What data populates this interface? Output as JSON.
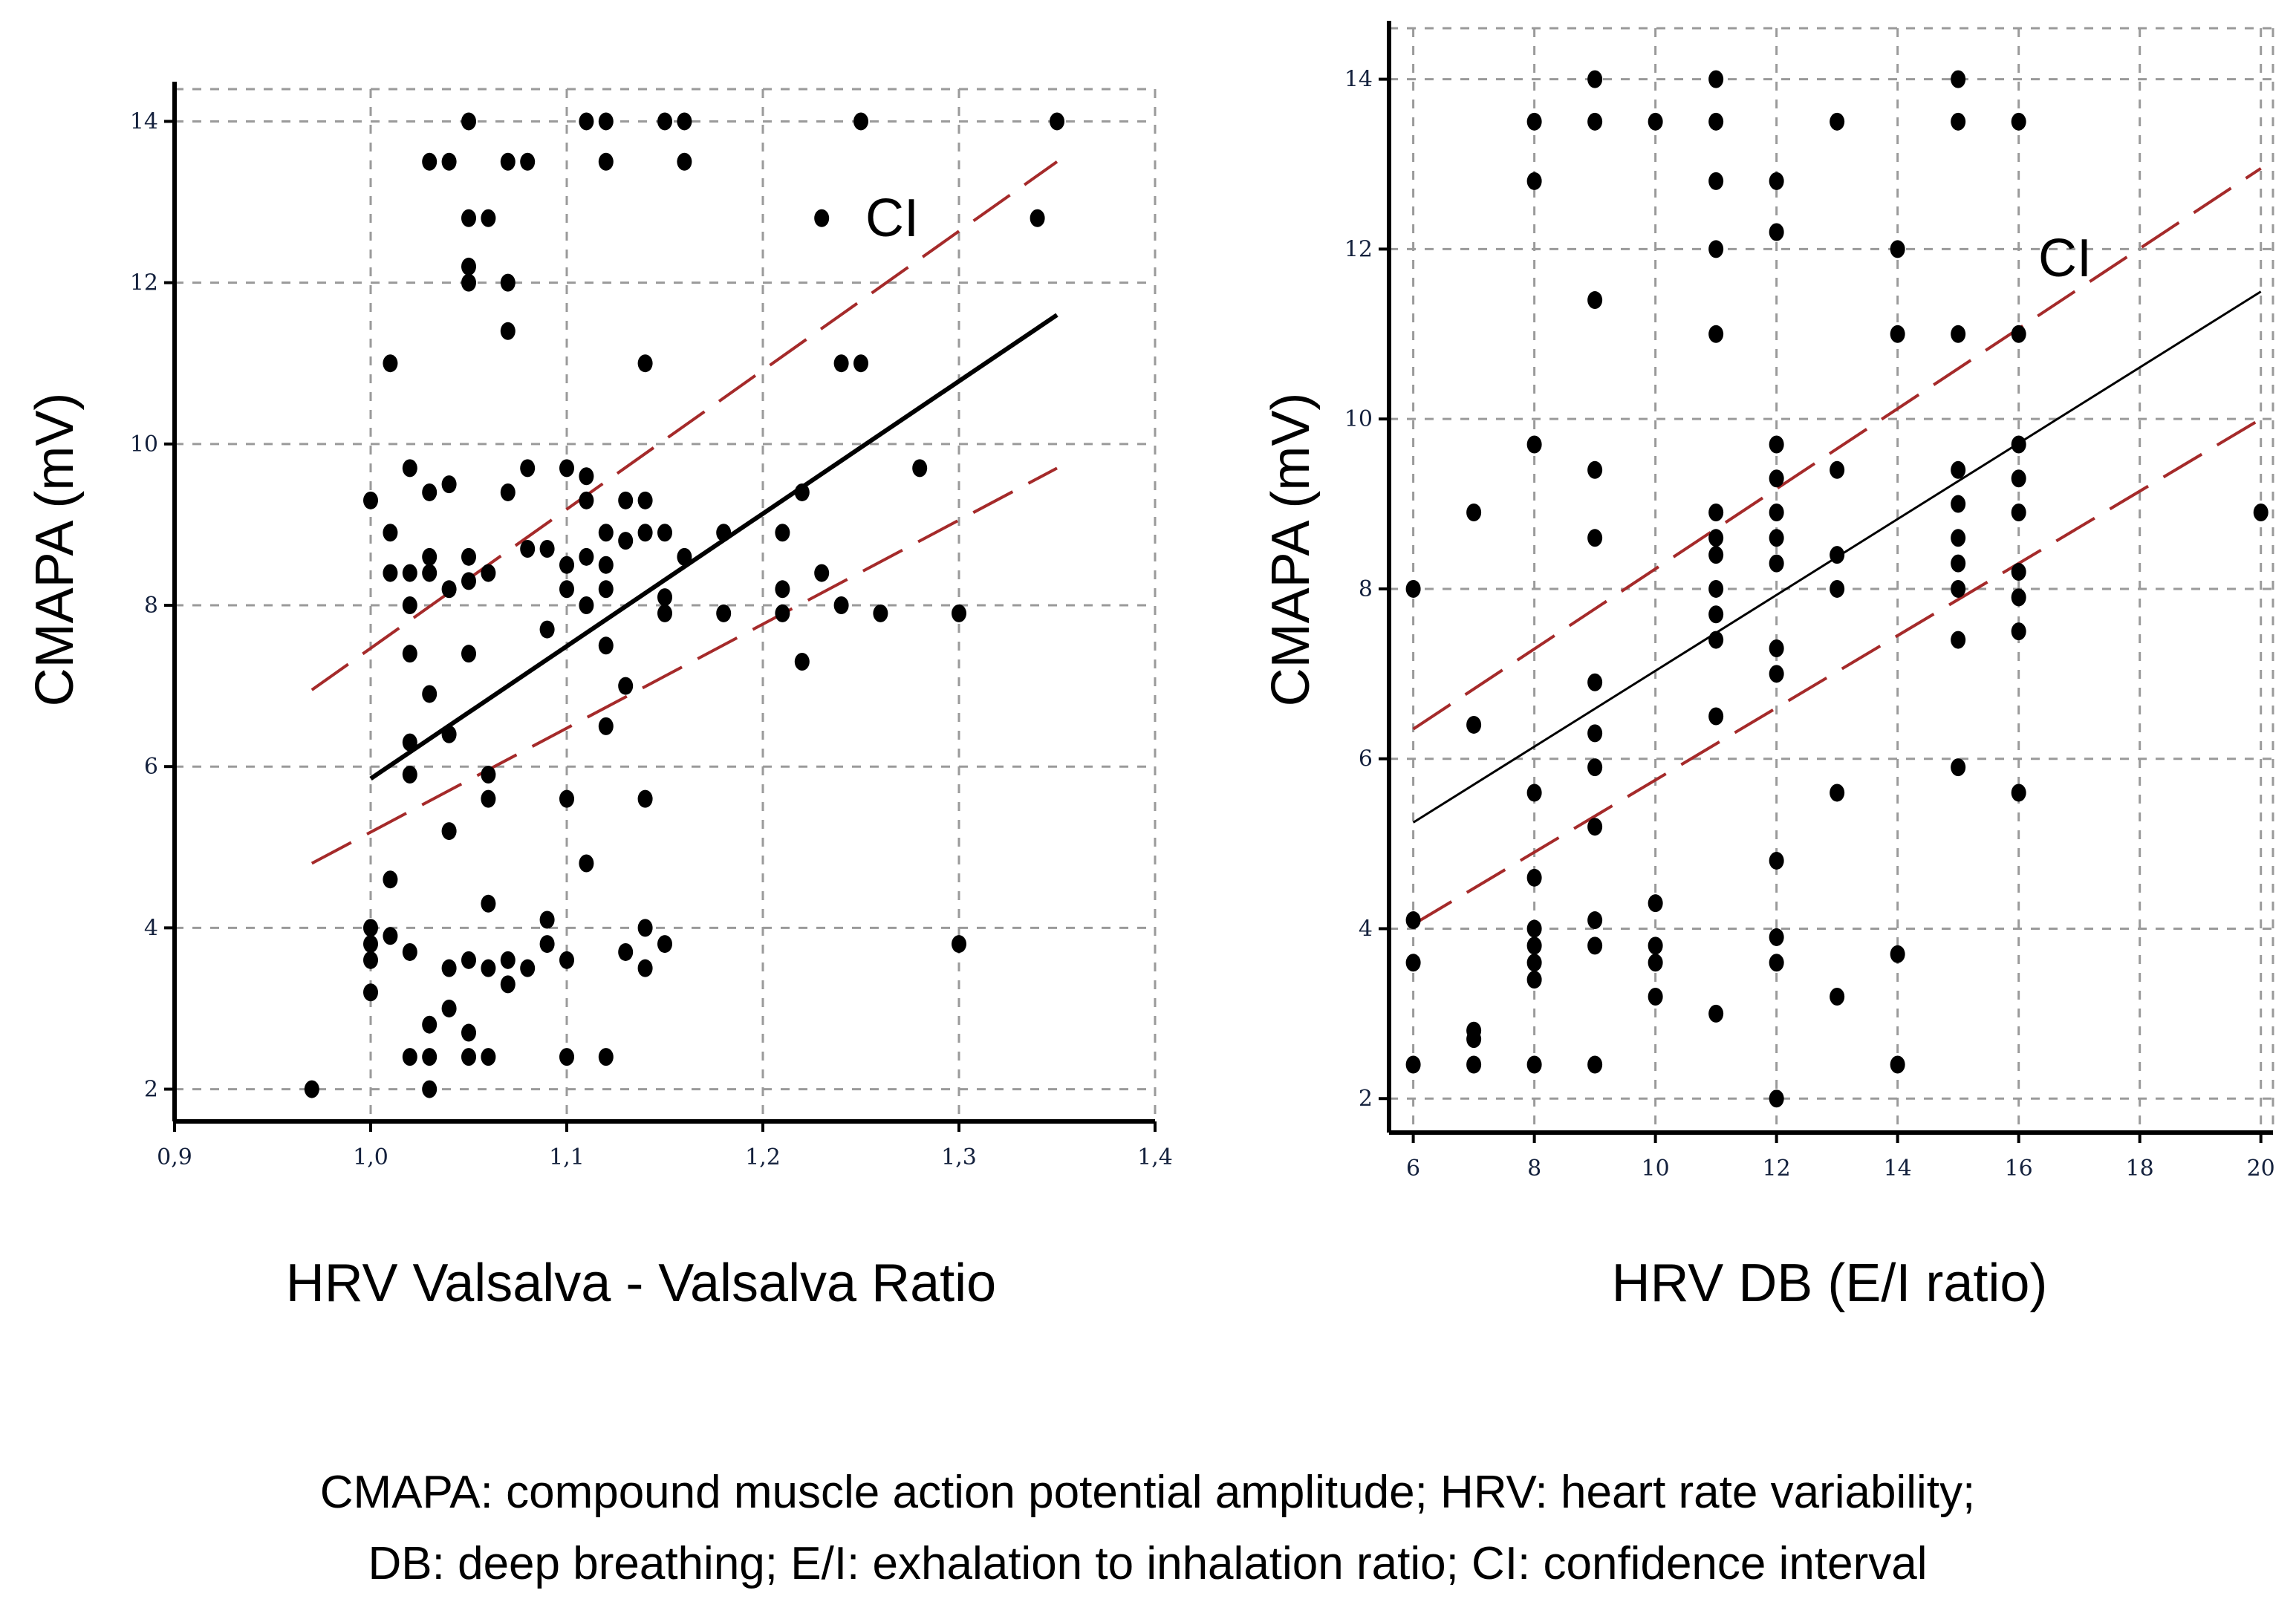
{
  "chart_data": [
    {
      "type": "scatter",
      "xlabel": "HRV Valsalva - Valsalva Ratio",
      "ylabel": "CMAPA (mV)",
      "xlim": [
        0.9,
        1.4
      ],
      "ylim": [
        1.6,
        14.4
      ],
      "xticks": [
        "0,9",
        "1,0",
        "1,1",
        "1,2",
        "1,3",
        "1,4"
      ],
      "xtick_values": [
        0.9,
        1.0,
        1.1,
        1.2,
        1.3,
        1.4
      ],
      "yticks": [
        "2",
        "4",
        "6",
        "8",
        "10",
        "12",
        "14"
      ],
      "ytick_values": [
        2,
        4,
        6,
        8,
        10,
        12,
        14
      ],
      "grid": true,
      "annotation": "CI",
      "series": [
        {
          "name": "observations",
          "points": [
            [
              0.97,
              2.0
            ],
            [
              1.0,
              9.3
            ],
            [
              1.0,
              4.0
            ],
            [
              1.0,
              3.8
            ],
            [
              1.0,
              3.6
            ],
            [
              1.0,
              3.2
            ],
            [
              1.01,
              11.0
            ],
            [
              1.01,
              8.9
            ],
            [
              1.01,
              8.4
            ],
            [
              1.01,
              4.6
            ],
            [
              1.01,
              3.9
            ],
            [
              1.02,
              9.7
            ],
            [
              1.02,
              8.4
            ],
            [
              1.02,
              8.0
            ],
            [
              1.02,
              7.4
            ],
            [
              1.02,
              6.3
            ],
            [
              1.02,
              5.9
            ],
            [
              1.02,
              3.7
            ],
            [
              1.02,
              2.4
            ],
            [
              1.03,
              13.5
            ],
            [
              1.03,
              9.4
            ],
            [
              1.03,
              8.6
            ],
            [
              1.03,
              8.4
            ],
            [
              1.03,
              6.9
            ],
            [
              1.03,
              2.8
            ],
            [
              1.03,
              2.4
            ],
            [
              1.03,
              2.0
            ],
            [
              1.04,
              13.5
            ],
            [
              1.04,
              9.5
            ],
            [
              1.04,
              8.2
            ],
            [
              1.04,
              6.4
            ],
            [
              1.04,
              5.2
            ],
            [
              1.04,
              3.5
            ],
            [
              1.04,
              3.0
            ],
            [
              1.05,
              14.0
            ],
            [
              1.05,
              12.8
            ],
            [
              1.05,
              12.2
            ],
            [
              1.05,
              12.0
            ],
            [
              1.05,
              8.6
            ],
            [
              1.05,
              8.3
            ],
            [
              1.05,
              7.4
            ],
            [
              1.05,
              3.6
            ],
            [
              1.05,
              2.7
            ],
            [
              1.05,
              2.4
            ],
            [
              1.06,
              12.8
            ],
            [
              1.06,
              8.4
            ],
            [
              1.06,
              5.9
            ],
            [
              1.06,
              5.6
            ],
            [
              1.06,
              4.3
            ],
            [
              1.06,
              3.5
            ],
            [
              1.06,
              2.4
            ],
            [
              1.07,
              13.5
            ],
            [
              1.07,
              12.0
            ],
            [
              1.07,
              11.4
            ],
            [
              1.07,
              9.4
            ],
            [
              1.07,
              3.6
            ],
            [
              1.07,
              3.3
            ],
            [
              1.08,
              13.5
            ],
            [
              1.08,
              9.7
            ],
            [
              1.08,
              8.7
            ],
            [
              1.08,
              3.5
            ],
            [
              1.09,
              8.7
            ],
            [
              1.09,
              7.7
            ],
            [
              1.09,
              4.1
            ],
            [
              1.09,
              3.8
            ],
            [
              1.1,
              9.7
            ],
            [
              1.1,
              8.5
            ],
            [
              1.1,
              8.2
            ],
            [
              1.1,
              5.6
            ],
            [
              1.1,
              3.6
            ],
            [
              1.1,
              2.4
            ],
            [
              1.11,
              14.0
            ],
            [
              1.11,
              9.6
            ],
            [
              1.11,
              9.3
            ],
            [
              1.11,
              8.6
            ],
            [
              1.11,
              8.0
            ],
            [
              1.11,
              4.8
            ],
            [
              1.12,
              14.0
            ],
            [
              1.12,
              13.5
            ],
            [
              1.12,
              8.9
            ],
            [
              1.12,
              8.5
            ],
            [
              1.12,
              8.2
            ],
            [
              1.12,
              7.5
            ],
            [
              1.12,
              6.5
            ],
            [
              1.12,
              2.4
            ],
            [
              1.13,
              9.3
            ],
            [
              1.13,
              8.8
            ],
            [
              1.13,
              7.0
            ],
            [
              1.13,
              3.7
            ],
            [
              1.14,
              11.0
            ],
            [
              1.14,
              9.3
            ],
            [
              1.14,
              8.9
            ],
            [
              1.14,
              5.6
            ],
            [
              1.14,
              4.0
            ],
            [
              1.14,
              3.5
            ],
            [
              1.15,
              14.0
            ],
            [
              1.15,
              8.9
            ],
            [
              1.15,
              8.1
            ],
            [
              1.15,
              7.9
            ],
            [
              1.15,
              3.8
            ],
            [
              1.16,
              14.0
            ],
            [
              1.16,
              13.5
            ],
            [
              1.16,
              8.6
            ],
            [
              1.18,
              8.9
            ],
            [
              1.18,
              7.9
            ],
            [
              1.21,
              8.9
            ],
            [
              1.21,
              8.2
            ],
            [
              1.21,
              7.9
            ],
            [
              1.22,
              9.4
            ],
            [
              1.22,
              7.3
            ],
            [
              1.23,
              12.8
            ],
            [
              1.23,
              8.4
            ],
            [
              1.24,
              11.0
            ],
            [
              1.24,
              8.0
            ],
            [
              1.25,
              14.0
            ],
            [
              1.25,
              11.0
            ],
            [
              1.26,
              7.9
            ],
            [
              1.28,
              9.7
            ],
            [
              1.3,
              7.9
            ],
            [
              1.3,
              3.8
            ],
            [
              1.34,
              12.8
            ],
            [
              1.35,
              14.0
            ]
          ]
        },
        {
          "name": "regression line",
          "x": [
            1.0,
            1.35
          ],
          "y": [
            5.85,
            11.6
          ]
        },
        {
          "name": "CI upper",
          "x": [
            0.97,
            1.35
          ],
          "y": [
            6.95,
            13.5
          ]
        },
        {
          "name": "CI lower",
          "x": [
            0.97,
            1.35
          ],
          "y": [
            4.8,
            9.7
          ]
        }
      ]
    },
    {
      "type": "scatter",
      "xlabel": "HRV DB (E/I ratio)",
      "ylabel": "CMAPA (mV)",
      "xlim": [
        5.6,
        20.2
      ],
      "ylim": [
        1.6,
        14.6
      ],
      "xticks": [
        "6",
        "8",
        "10",
        "12",
        "14",
        "16",
        "18",
        "20"
      ],
      "xtick_values": [
        6,
        8,
        10,
        12,
        14,
        16,
        18,
        20
      ],
      "yticks": [
        "2",
        "4",
        "6",
        "8",
        "10",
        "12",
        "14"
      ],
      "ytick_values": [
        2,
        4,
        6,
        8,
        10,
        12,
        14
      ],
      "grid": true,
      "annotation": "CI",
      "series": [
        {
          "name": "observations",
          "points": [
            [
              6,
              8.0
            ],
            [
              6,
              4.1
            ],
            [
              6,
              3.6
            ],
            [
              6,
              2.4
            ],
            [
              7,
              8.9
            ],
            [
              7,
              6.4
            ],
            [
              7,
              2.8
            ],
            [
              7,
              2.7
            ],
            [
              7,
              2.4
            ],
            [
              8,
              13.5
            ],
            [
              8,
              12.8
            ],
            [
              8,
              9.7
            ],
            [
              8,
              5.6
            ],
            [
              8,
              4.6
            ],
            [
              8,
              4.0
            ],
            [
              8,
              3.8
            ],
            [
              8,
              3.6
            ],
            [
              8,
              3.4
            ],
            [
              8,
              2.4
            ],
            [
              9,
              14.0
            ],
            [
              9,
              13.5
            ],
            [
              9,
              11.4
            ],
            [
              9,
              9.4
            ],
            [
              9,
              8.6
            ],
            [
              9,
              6.9
            ],
            [
              9,
              6.3
            ],
            [
              9,
              5.9
            ],
            [
              9,
              5.2
            ],
            [
              9,
              4.1
            ],
            [
              9,
              3.8
            ],
            [
              9,
              2.4
            ],
            [
              10,
              13.5
            ],
            [
              10,
              4.3
            ],
            [
              10,
              3.8
            ],
            [
              10,
              3.6
            ],
            [
              10,
              3.2
            ],
            [
              11,
              14.0
            ],
            [
              11,
              13.5
            ],
            [
              11,
              12.8
            ],
            [
              11,
              12.0
            ],
            [
              11,
              11.0
            ],
            [
              11,
              8.9
            ],
            [
              11,
              8.6
            ],
            [
              11,
              8.4
            ],
            [
              11,
              8.0
            ],
            [
              11,
              7.7
            ],
            [
              11,
              7.4
            ],
            [
              11,
              6.5
            ],
            [
              11,
              3.0
            ],
            [
              12,
              12.8
            ],
            [
              12,
              12.2
            ],
            [
              12,
              9.7
            ],
            [
              12,
              9.3
            ],
            [
              12,
              8.9
            ],
            [
              12,
              8.6
            ],
            [
              12,
              8.3
            ],
            [
              12,
              7.3
            ],
            [
              12,
              7.0
            ],
            [
              12,
              4.8
            ],
            [
              12,
              3.9
            ],
            [
              12,
              3.6
            ],
            [
              12,
              2.0
            ],
            [
              13,
              13.5
            ],
            [
              13,
              9.4
            ],
            [
              13,
              8.4
            ],
            [
              13,
              8.0
            ],
            [
              13,
              5.6
            ],
            [
              13,
              3.2
            ],
            [
              14,
              12.0
            ],
            [
              14,
              11.0
            ],
            [
              14,
              3.7
            ],
            [
              14,
              2.4
            ],
            [
              15,
              14.0
            ],
            [
              15,
              13.5
            ],
            [
              15,
              11.0
            ],
            [
              15,
              9.4
            ],
            [
              15,
              9.0
            ],
            [
              15,
              8.6
            ],
            [
              15,
              8.3
            ],
            [
              15,
              8.0
            ],
            [
              15,
              7.4
            ],
            [
              15,
              5.9
            ],
            [
              16,
              13.5
            ],
            [
              16,
              11.0
            ],
            [
              16,
              9.7
            ],
            [
              16,
              9.3
            ],
            [
              16,
              8.9
            ],
            [
              16,
              8.2
            ],
            [
              16,
              7.9
            ],
            [
              16,
              7.5
            ],
            [
              16,
              5.6
            ],
            [
              20,
              8.9
            ]
          ]
        },
        {
          "name": "regression line",
          "x": [
            6,
            20
          ],
          "y": [
            5.25,
            11.5
          ]
        },
        {
          "name": "CI upper",
          "x": [
            6,
            20
          ],
          "y": [
            6.35,
            12.95
          ]
        },
        {
          "name": "CI lower",
          "x": [
            6,
            20
          ],
          "y": [
            4.05,
            10.0
          ]
        }
      ]
    }
  ],
  "caption": {
    "line1": {
      "t1": "CMAPA",
      "t2": ": compound muscle action potential amplitude; ",
      "t3": "HRV",
      "t4": ": heart rate variability;"
    },
    "line2": {
      "t1": "DB",
      "t2": ": deep breathing; ",
      "t3": "E/I",
      "t4": ": exhalation to inhalation ratio; ",
      "t5": "CI",
      "t6": ": confidence interval"
    }
  },
  "colors": {
    "points": "#000000",
    "regression": "#000000",
    "ci": "#a52a2a",
    "grid": "#9a9a9a",
    "tick_text": "#14213d"
  }
}
